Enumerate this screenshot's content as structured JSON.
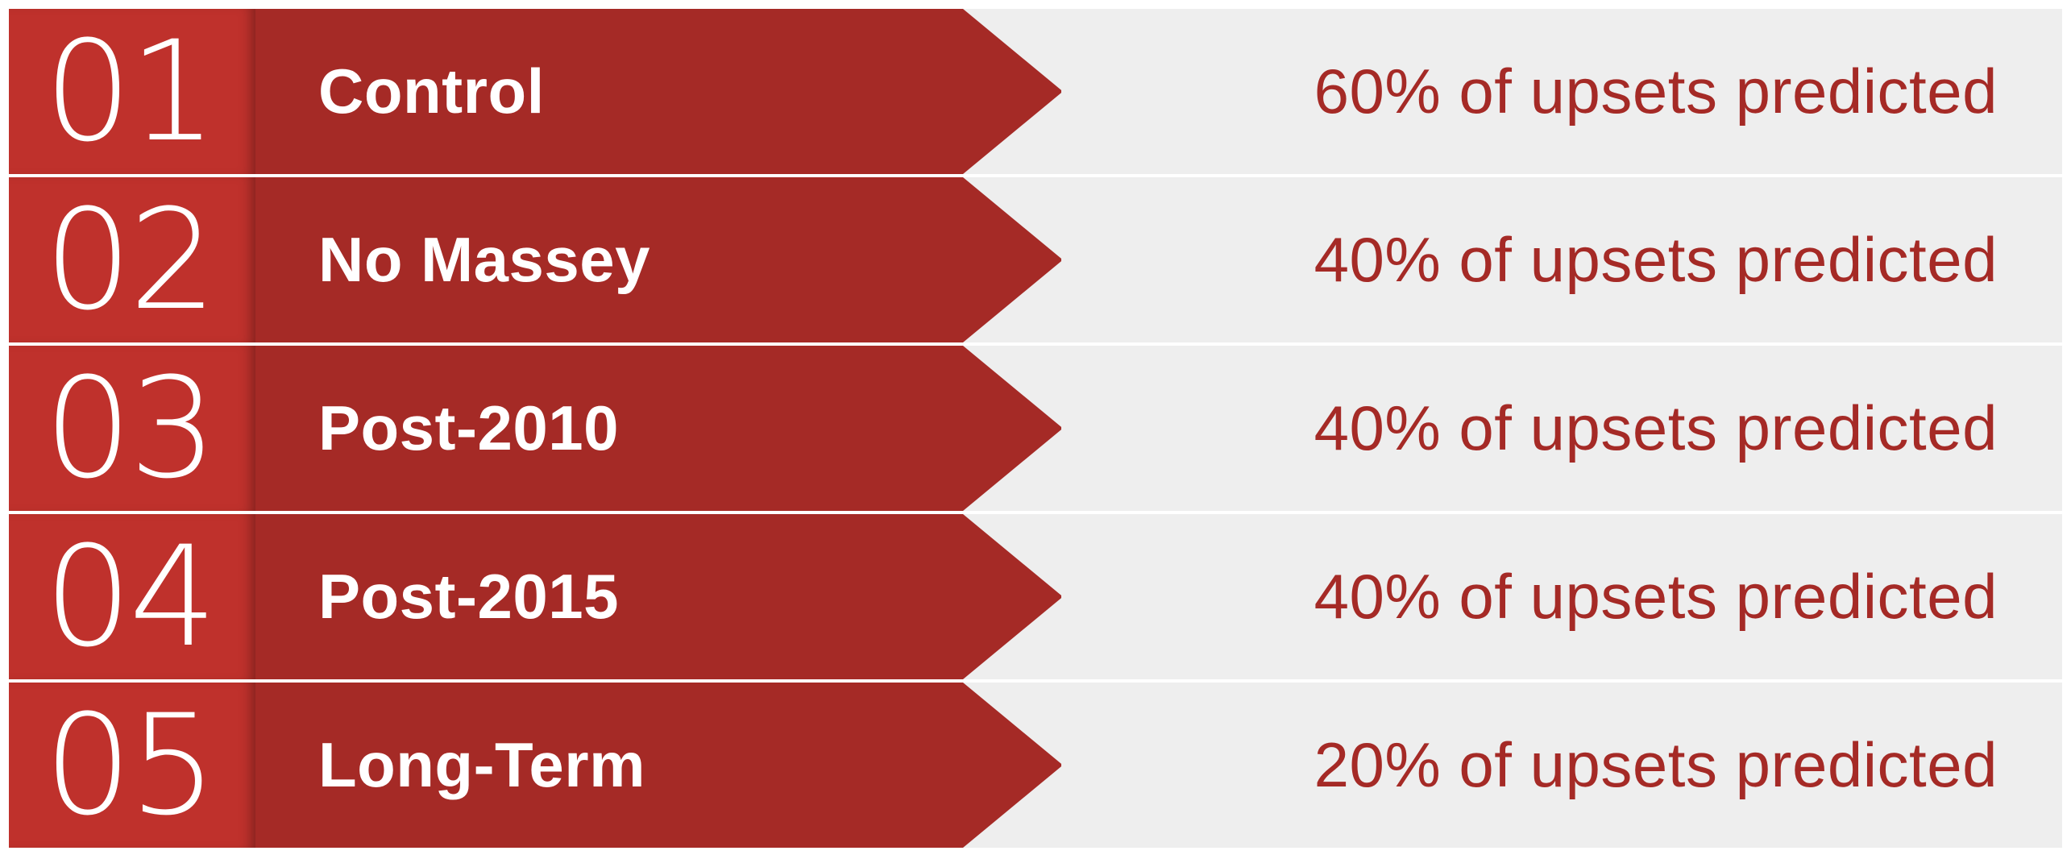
{
  "colors": {
    "number_box": "#bf312c",
    "arrow": "#a52a26",
    "row_background": "#eeeeee",
    "stat_text": "#a52a26",
    "label_text": "#ffffff"
  },
  "rows": [
    {
      "number": "01",
      "label": "Control",
      "stat": "60% of upsets predicted",
      "percent": 60
    },
    {
      "number": "02",
      "label": "No Massey",
      "stat": "40% of upsets predicted",
      "percent": 40
    },
    {
      "number": "03",
      "label": "Post-2010",
      "stat": "40% of upsets predicted",
      "percent": 40
    },
    {
      "number": "04",
      "label": "Post-2015",
      "stat": "40% of upsets predicted",
      "percent": 40
    },
    {
      "number": "05",
      "label": "Long-Term",
      "stat": "20% of upsets predicted",
      "percent": 20
    }
  ]
}
